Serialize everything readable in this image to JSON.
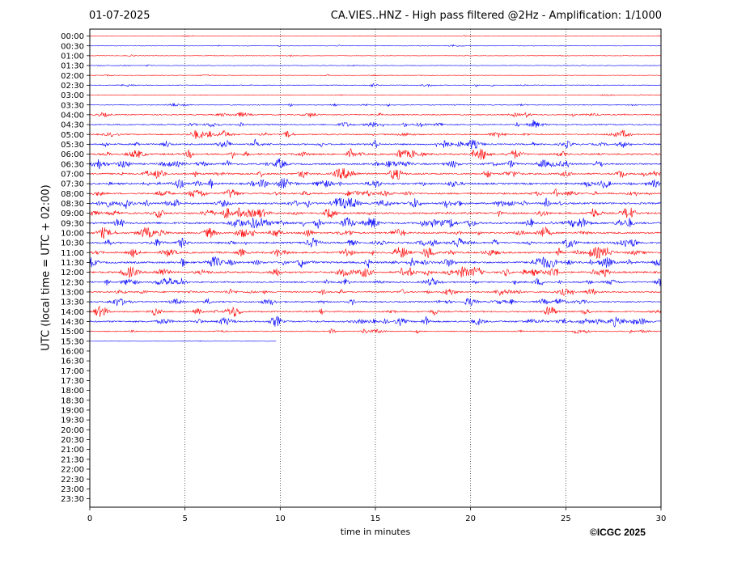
{
  "header": {
    "date": "01-07-2025",
    "title": "CA.VIES..HNZ - High pass filtered @2Hz - Amplification: 1/1000"
  },
  "footer": {
    "copyright": "©ICGC 2025"
  },
  "chart_data": {
    "type": "line",
    "title": "CA.VIES..HNZ - High pass filtered @2Hz - Amplification: 1/1000",
    "subtitle": "01-07-2025",
    "xlabel": "time in minutes",
    "ylabel": "UTC (local time = UTC + 02:00)",
    "xlim": [
      0,
      30
    ],
    "xticks": [
      "0",
      "5",
      "10",
      "15",
      "20",
      "25",
      "30"
    ],
    "vertical_gridlines_at_minutes": [
      5,
      10,
      15,
      20,
      25
    ],
    "grid": "dotted vertical",
    "rows": [
      "00:00",
      "00:30",
      "01:00",
      "01:30",
      "02:00",
      "02:30",
      "03:00",
      "03:30",
      "04:00",
      "04:30",
      "05:00",
      "05:30",
      "06:00",
      "06:30",
      "07:00",
      "07:30",
      "08:00",
      "08:30",
      "09:00",
      "09:30",
      "10:00",
      "10:30",
      "11:00",
      "11:30",
      "12:00",
      "12:30",
      "13:00",
      "13:30",
      "14:00",
      "14:30",
      "15:00",
      "15:30",
      "16:00",
      "16:30",
      "17:00",
      "17:30",
      "18:00",
      "18:30",
      "19:00",
      "19:30",
      "20:00",
      "20:30",
      "21:00",
      "21:30",
      "22:00",
      "22:30",
      "23:00",
      "23:30"
    ],
    "trace_colors": [
      "#ff0000",
      "#0000ff"
    ],
    "relative_activity": [
      0.08,
      0.1,
      0.1,
      0.12,
      0.12,
      0.18,
      0.1,
      0.22,
      0.3,
      0.35,
      0.4,
      0.5,
      0.55,
      0.55,
      0.55,
      0.6,
      0.55,
      0.6,
      0.6,
      0.65,
      0.6,
      0.6,
      0.6,
      0.65,
      0.6,
      0.5,
      0.45,
      0.45,
      0.45,
      0.55,
      0.3,
      0.05
    ],
    "last_row_end_minutes": 9.8
  }
}
